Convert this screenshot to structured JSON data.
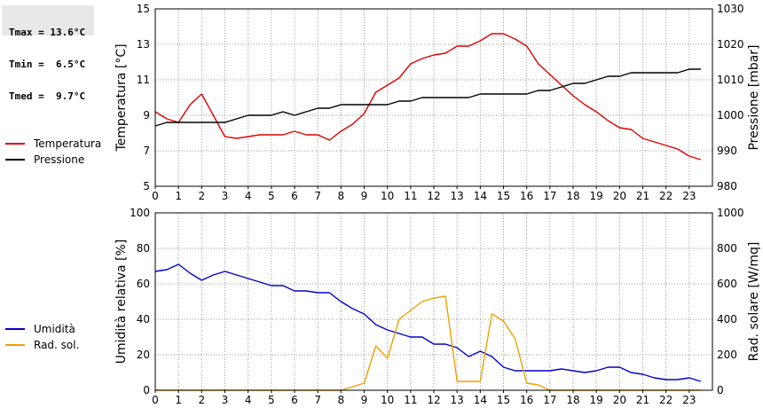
{
  "stats": [
    {
      "label": "Tmax =",
      "value": "13.6°C"
    },
    {
      "label": "Tmin =",
      "value": " 6.5°C"
    },
    {
      "label": "Tmed =",
      "value": " 9.7°C"
    }
  ],
  "legend_top": [
    {
      "name": "Temperatura",
      "color": "#dd0000"
    },
    {
      "name": "Pressione",
      "color": "#000000"
    }
  ],
  "legend_bottom": [
    {
      "name": "Umidità",
      "color": "#0000cc"
    },
    {
      "name": "Rad. sol.",
      "color": "#f0a000"
    }
  ],
  "chart_data": [
    {
      "type": "line",
      "x_ticks": [
        0,
        1,
        2,
        3,
        4,
        5,
        6,
        7,
        8,
        9,
        10,
        11,
        12,
        13,
        14,
        15,
        16,
        17,
        18,
        19,
        20,
        21,
        22,
        23
      ],
      "x_range": [
        0,
        24
      ],
      "xlabel": "",
      "ylabel": "Temperatura [°C]",
      "ylim": [
        5,
        15
      ],
      "y_ticks": [
        5,
        7,
        9,
        11,
        13,
        15
      ],
      "y2label": "Pressione [mbar]",
      "y2lim": [
        980,
        1030
      ],
      "y2_ticks": [
        980,
        990,
        1000,
        1010,
        1020,
        1030
      ],
      "grid": true,
      "series": [
        {
          "name": "Temperatura",
          "axis": "left",
          "color": "#dd0000",
          "x": [
            0,
            0.5,
            1,
            1.5,
            2,
            2.5,
            3,
            3.5,
            4,
            4.5,
            5,
            5.5,
            6,
            6.5,
            7,
            7.5,
            8,
            8.5,
            9,
            9.5,
            10,
            10.5,
            11,
            11.5,
            12,
            12.5,
            13,
            13.5,
            14,
            14.5,
            15,
            15.5,
            16,
            16.5,
            17,
            17.5,
            18,
            18.5,
            19,
            19.5,
            20,
            20.5,
            21,
            21.5,
            22,
            22.5,
            23,
            23.5
          ],
          "y": [
            9.2,
            8.8,
            8.6,
            9.6,
            10.2,
            9.0,
            7.8,
            7.7,
            7.8,
            7.9,
            7.9,
            7.9,
            8.1,
            7.9,
            7.9,
            7.6,
            8.1,
            8.5,
            9.1,
            10.3,
            10.7,
            11.1,
            11.9,
            12.2,
            12.4,
            12.5,
            12.9,
            12.9,
            13.2,
            13.6,
            13.6,
            13.3,
            12.9,
            11.9,
            11.3,
            10.7,
            10.1,
            9.6,
            9.2,
            8.7,
            8.3,
            8.2,
            7.7,
            7.5,
            7.3,
            7.1,
            6.7,
            6.5
          ]
        },
        {
          "name": "Pressione",
          "axis": "right",
          "color": "#000000",
          "x": [
            0,
            0.5,
            1,
            1.5,
            2,
            2.5,
            3,
            3.5,
            4,
            4.5,
            5,
            5.5,
            6,
            6.5,
            7,
            7.5,
            8,
            8.5,
            9,
            9.5,
            10,
            10.5,
            11,
            11.5,
            12,
            12.5,
            13,
            13.5,
            14,
            14.5,
            15,
            15.5,
            16,
            16.5,
            17,
            17.5,
            18,
            18.5,
            19,
            19.5,
            20,
            20.5,
            21,
            21.5,
            22,
            22.5,
            23,
            23.5
          ],
          "y": [
            997,
            998,
            998,
            998,
            998,
            998,
            998,
            999,
            1000,
            1000,
            1000,
            1001,
            1000,
            1001,
            1002,
            1002,
            1003,
            1003,
            1003,
            1003,
            1003,
            1004,
            1004,
            1005,
            1005,
            1005,
            1005,
            1005,
            1006,
            1006,
            1006,
            1006,
            1006,
            1007,
            1007,
            1008,
            1009,
            1009,
            1010,
            1011,
            1011,
            1012,
            1012,
            1012,
            1012,
            1012,
            1013,
            1013
          ]
        }
      ]
    },
    {
      "type": "line",
      "x_ticks": [
        0,
        1,
        2,
        3,
        4,
        5,
        6,
        7,
        8,
        9,
        10,
        11,
        12,
        13,
        14,
        15,
        16,
        17,
        18,
        19,
        20,
        21,
        22,
        23
      ],
      "x_range": [
        0,
        24
      ],
      "xlabel": "",
      "ylabel": "Umidità relativa [%]",
      "ylim": [
        0,
        100
      ],
      "y_ticks": [
        0,
        20,
        40,
        60,
        80,
        100
      ],
      "y2label": "Rad. solare [W/mq]",
      "y2lim": [
        0,
        1000
      ],
      "y2_ticks": [
        0,
        200,
        400,
        600,
        800,
        1000
      ],
      "grid": true,
      "series": [
        {
          "name": "Umidità",
          "axis": "left",
          "color": "#0000cc",
          "x": [
            0,
            0.5,
            1,
            1.5,
            2,
            2.5,
            3,
            3.5,
            4,
            4.5,
            5,
            5.5,
            6,
            6.5,
            7,
            7.5,
            8,
            8.5,
            9,
            9.5,
            10,
            10.5,
            11,
            11.5,
            12,
            12.5,
            13,
            13.5,
            14,
            14.5,
            15,
            15.5,
            16,
            16.5,
            17,
            17.5,
            18,
            18.5,
            19,
            19.5,
            20,
            20.5,
            21,
            21.5,
            22,
            22.5,
            23,
            23.5
          ],
          "y": [
            67,
            68,
            71,
            66,
            62,
            65,
            67,
            65,
            63,
            61,
            59,
            59,
            56,
            56,
            55,
            55,
            50,
            46,
            43,
            37,
            34,
            32,
            30,
            30,
            26,
            26,
            24,
            19,
            22,
            19,
            13,
            11,
            11,
            11,
            11,
            12,
            11,
            10,
            11,
            13,
            13,
            10,
            9,
            7,
            6,
            6,
            7,
            5
          ]
        },
        {
          "name": "Rad. sol.",
          "axis": "right",
          "color": "#f0a000",
          "x": [
            0,
            1,
            2,
            3,
            4,
            5,
            6,
            7,
            8,
            8.5,
            9,
            9.5,
            10,
            10.5,
            11,
            11.5,
            12,
            12.5,
            13,
            13.5,
            14,
            14.5,
            15,
            15.5,
            16,
            16.5,
            17,
            18,
            19,
            20,
            21,
            22,
            23,
            23.5
          ],
          "y": [
            0,
            0,
            0,
            0,
            0,
            0,
            0,
            0,
            0,
            20,
            40,
            250,
            180,
            400,
            450,
            500,
            520,
            530,
            50,
            50,
            50,
            430,
            390,
            290,
            40,
            30,
            0,
            0,
            0,
            0,
            0,
            0,
            0,
            0
          ]
        }
      ]
    }
  ]
}
